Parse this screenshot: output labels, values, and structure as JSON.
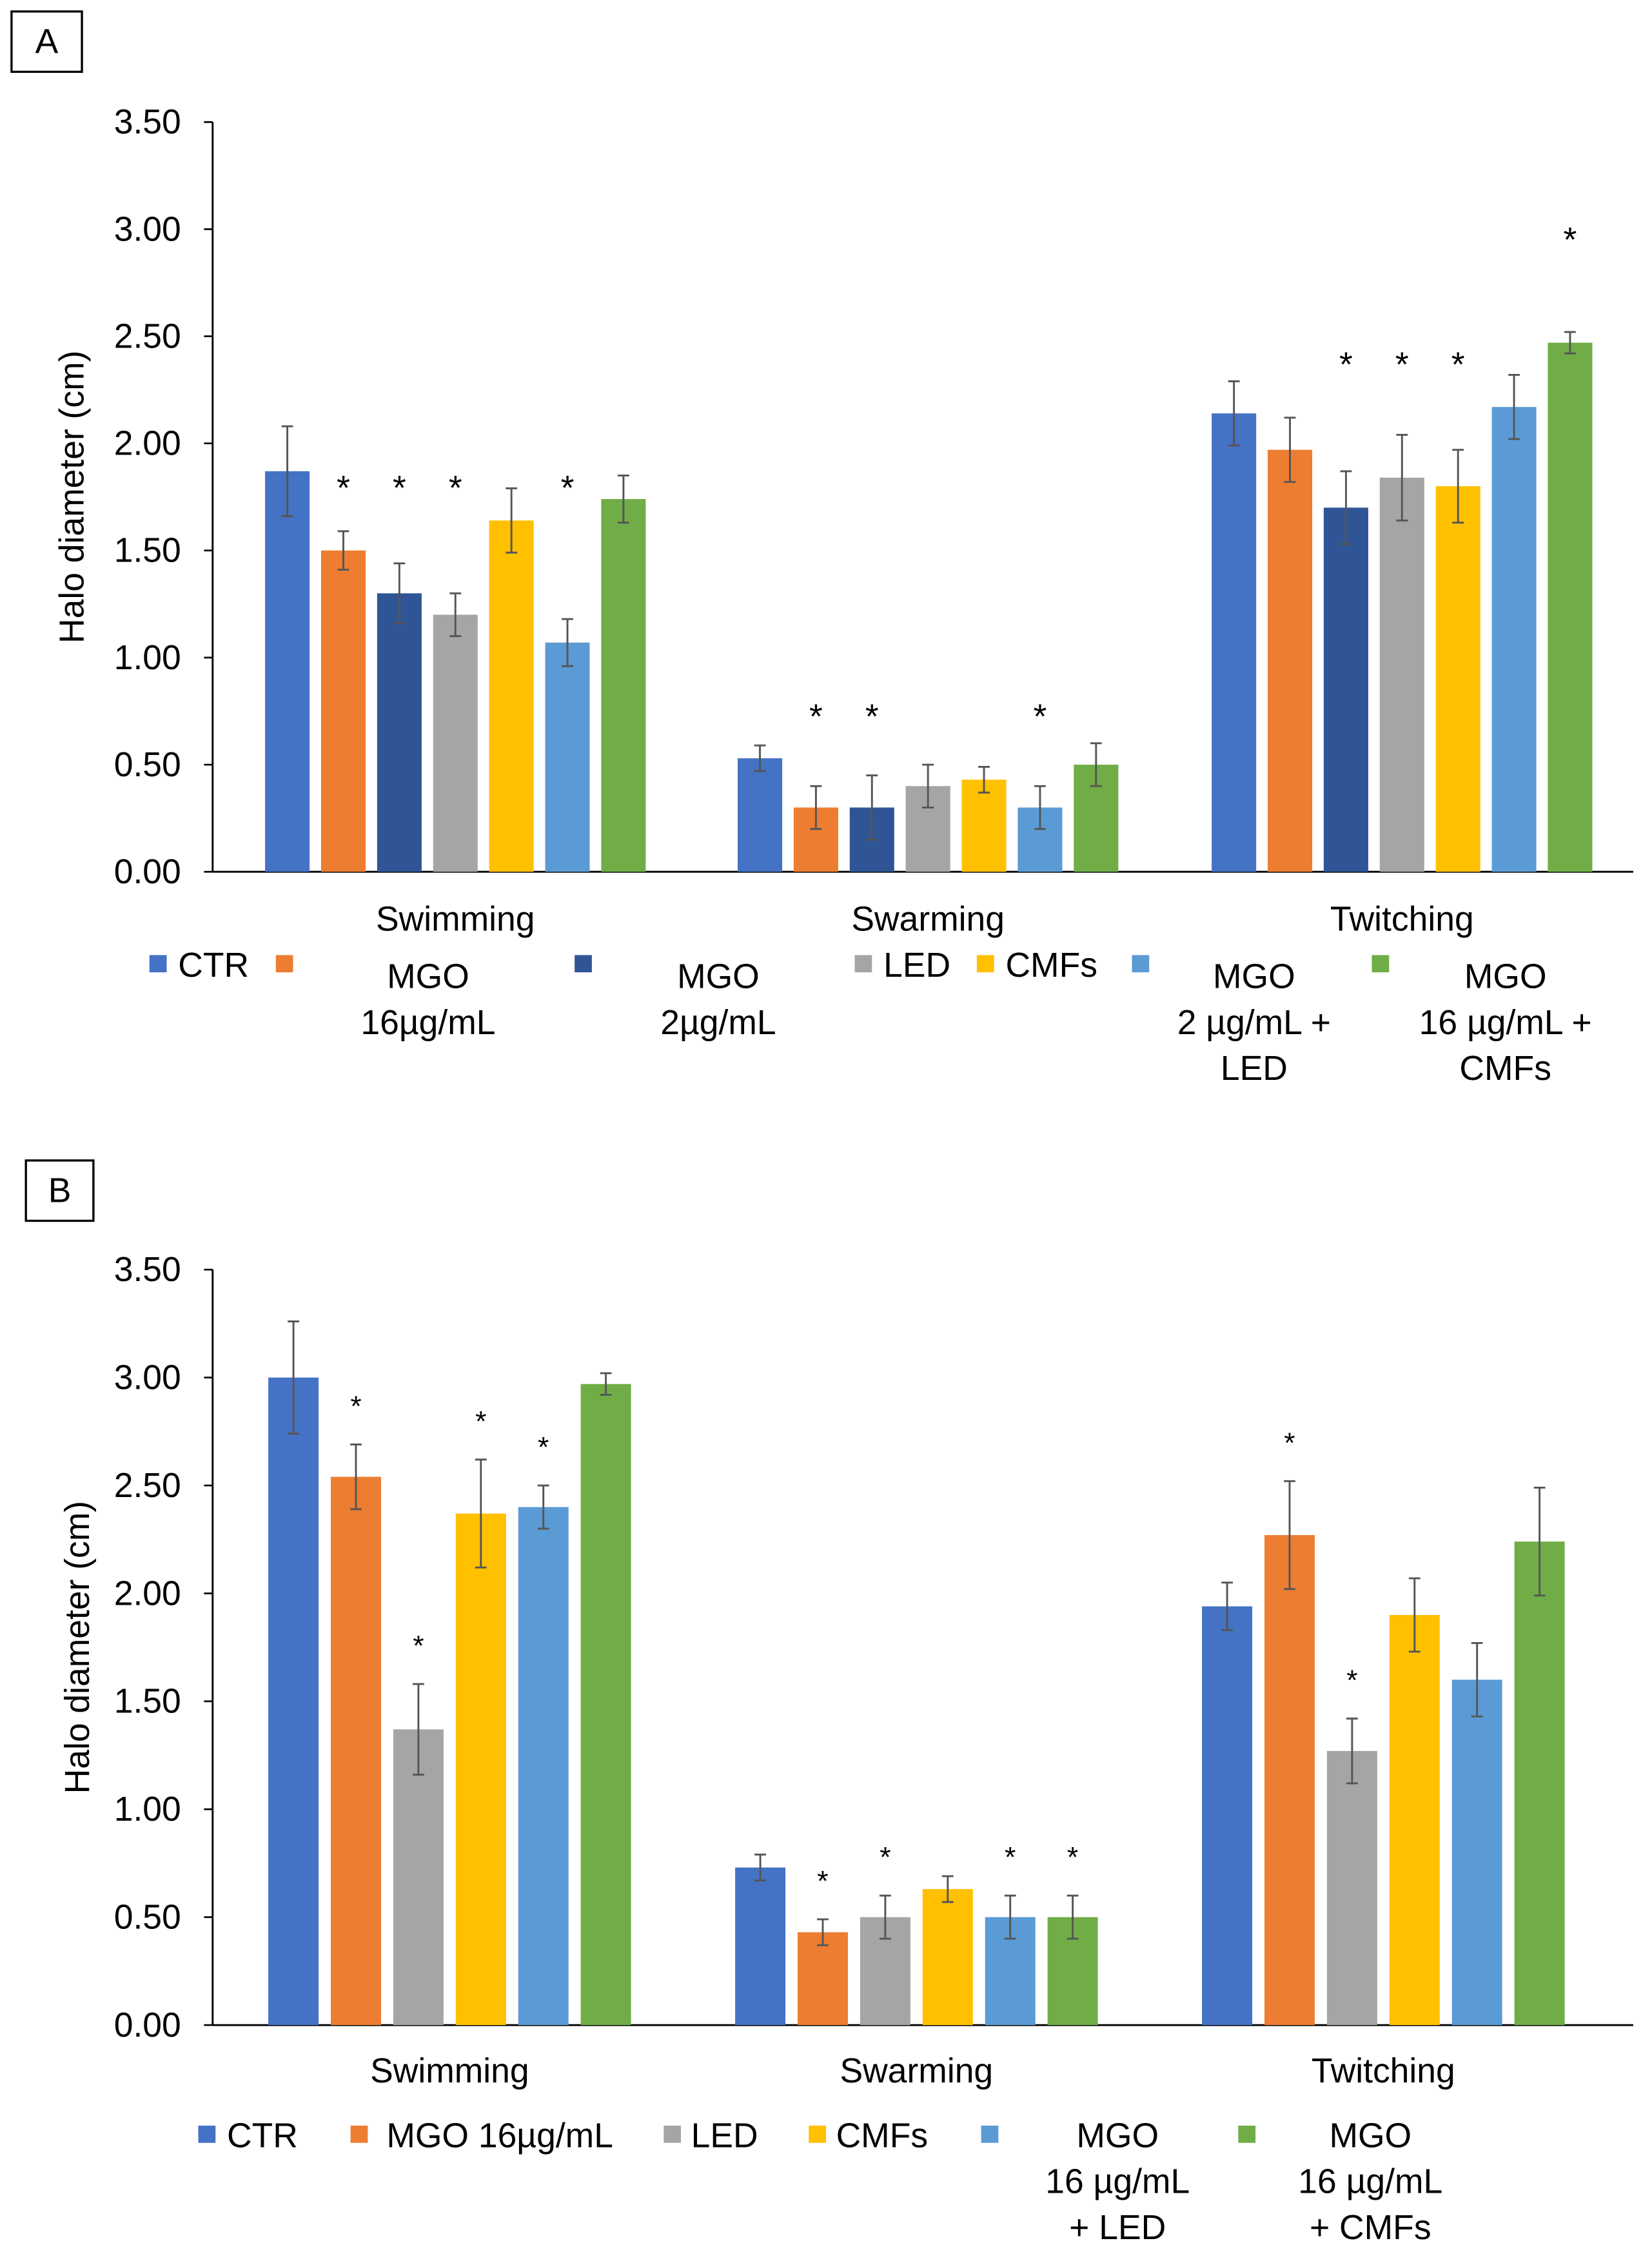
{
  "chart_data": [
    {
      "panel_label": "A",
      "type": "bar",
      "ylabel": "Halo diameter (cm)",
      "ylim": [
        0,
        3.5
      ],
      "yticks": [
        "0.00",
        "0.50",
        "1.00",
        "1.50",
        "2.00",
        "2.50",
        "3.00",
        "3.50"
      ],
      "ytick_values": [
        0,
        0.5,
        1,
        1.5,
        2,
        2.5,
        3,
        3.5
      ],
      "categories": [
        "Swimming",
        "Swarming",
        "Twitching"
      ],
      "grid": false,
      "legend_position": "bottom",
      "series": [
        {
          "name": "CTR",
          "legend": [
            "CTR"
          ],
          "color": "#4472C4",
          "values": [
            1.87,
            0.53,
            2.14
          ],
          "errors": [
            0.21,
            0.06,
            0.15
          ],
          "significant": [
            false,
            false,
            false
          ]
        },
        {
          "name": "MGO 16µg/mL",
          "legend": [
            "MGO",
            "16µg/mL"
          ],
          "color": "#ED7D31",
          "values": [
            1.5,
            0.3,
            1.97
          ],
          "errors": [
            0.09,
            0.1,
            0.15
          ],
          "significant": [
            true,
            true,
            false
          ]
        },
        {
          "name": "MGO 2µg/mL",
          "legend": [
            "MGO",
            "2µg/mL"
          ],
          "color": "#2F5597",
          "values": [
            1.3,
            0.3,
            1.7
          ],
          "errors": [
            0.14,
            0.15,
            0.17
          ],
          "significant": [
            true,
            true,
            true
          ]
        },
        {
          "name": "LED",
          "legend": [
            "LED"
          ],
          "color": "#A5A5A5",
          "values": [
            1.2,
            0.4,
            1.84
          ],
          "errors": [
            0.1,
            0.1,
            0.2
          ],
          "significant": [
            true,
            false,
            true
          ]
        },
        {
          "name": "CMFs",
          "legend": [
            "CMFs"
          ],
          "color": "#FFC000",
          "values": [
            1.64,
            0.43,
            1.8
          ],
          "errors": [
            0.15,
            0.06,
            0.17
          ],
          "significant": [
            false,
            false,
            true
          ]
        },
        {
          "name": "MGO 2 µg/mL + LED",
          "legend": [
            "MGO",
            "2 µg/mL +",
            "LED"
          ],
          "color": "#5B9BD5",
          "values": [
            1.07,
            0.3,
            2.17
          ],
          "errors": [
            0.11,
            0.1,
            0.15
          ],
          "significant": [
            true,
            true,
            false
          ]
        },
        {
          "name": "MGO 16 µg/mL + CMFs",
          "legend": [
            "MGO",
            "16 µg/mL +",
            "CMFs"
          ],
          "color": "#70AD47",
          "values": [
            1.74,
            0.5,
            2.47
          ],
          "errors": [
            0.11,
            0.1,
            0.05
          ],
          "significant": [
            false,
            false,
            true
          ]
        }
      ]
    },
    {
      "panel_label": "B",
      "type": "bar",
      "ylabel": "Halo diameter (cm)",
      "ylim": [
        0,
        3.5
      ],
      "yticks": [
        "0.00",
        "0.50",
        "1.00",
        "1.50",
        "2.00",
        "2.50",
        "3.00",
        "3.50"
      ],
      "ytick_values": [
        0,
        0.5,
        1,
        1.5,
        2,
        2.5,
        3,
        3.5
      ],
      "categories": [
        "Swimming",
        "Swarming",
        "Twitching"
      ],
      "grid": false,
      "legend_position": "bottom",
      "series": [
        {
          "name": "CTR",
          "legend": [
            "CTR"
          ],
          "color": "#4472C4",
          "values": [
            3.0,
            0.73,
            1.94
          ],
          "errors": [
            0.26,
            0.06,
            0.11
          ],
          "significant": [
            false,
            false,
            false
          ]
        },
        {
          "name": "MGO 16µg/mL",
          "legend": [
            "MGO 16µg/mL"
          ],
          "color": "#ED7D31",
          "values": [
            2.54,
            0.43,
            2.27
          ],
          "errors": [
            0.15,
            0.06,
            0.25
          ],
          "significant": [
            true,
            true,
            true
          ]
        },
        {
          "name": "LED",
          "legend": [
            "LED"
          ],
          "color": "#A5A5A5",
          "values": [
            1.37,
            0.5,
            1.27
          ],
          "errors": [
            0.21,
            0.1,
            0.15
          ],
          "significant": [
            true,
            true,
            true
          ]
        },
        {
          "name": "CMFs",
          "legend": [
            "CMFs"
          ],
          "color": "#FFC000",
          "values": [
            2.37,
            0.63,
            1.9
          ],
          "errors": [
            0.25,
            0.06,
            0.17
          ],
          "significant": [
            true,
            false,
            false
          ]
        },
        {
          "name": "MGO 16 µg/mL + LED",
          "legend": [
            "MGO",
            "16 µg/mL",
            "+ LED"
          ],
          "color": "#5B9BD5",
          "values": [
            2.4,
            0.5,
            1.6
          ],
          "errors": [
            0.1,
            0.1,
            0.17
          ],
          "significant": [
            true,
            true,
            false
          ]
        },
        {
          "name": "MGO 16 µg/mL + CMFs",
          "legend": [
            "MGO",
            "16 µg/mL",
            "+ CMFs"
          ],
          "color": "#70AD47",
          "values": [
            2.97,
            0.5,
            2.24
          ],
          "errors": [
            0.05,
            0.1,
            0.25
          ],
          "significant": [
            false,
            true,
            false
          ]
        }
      ]
    }
  ],
  "significance_marker": "*"
}
